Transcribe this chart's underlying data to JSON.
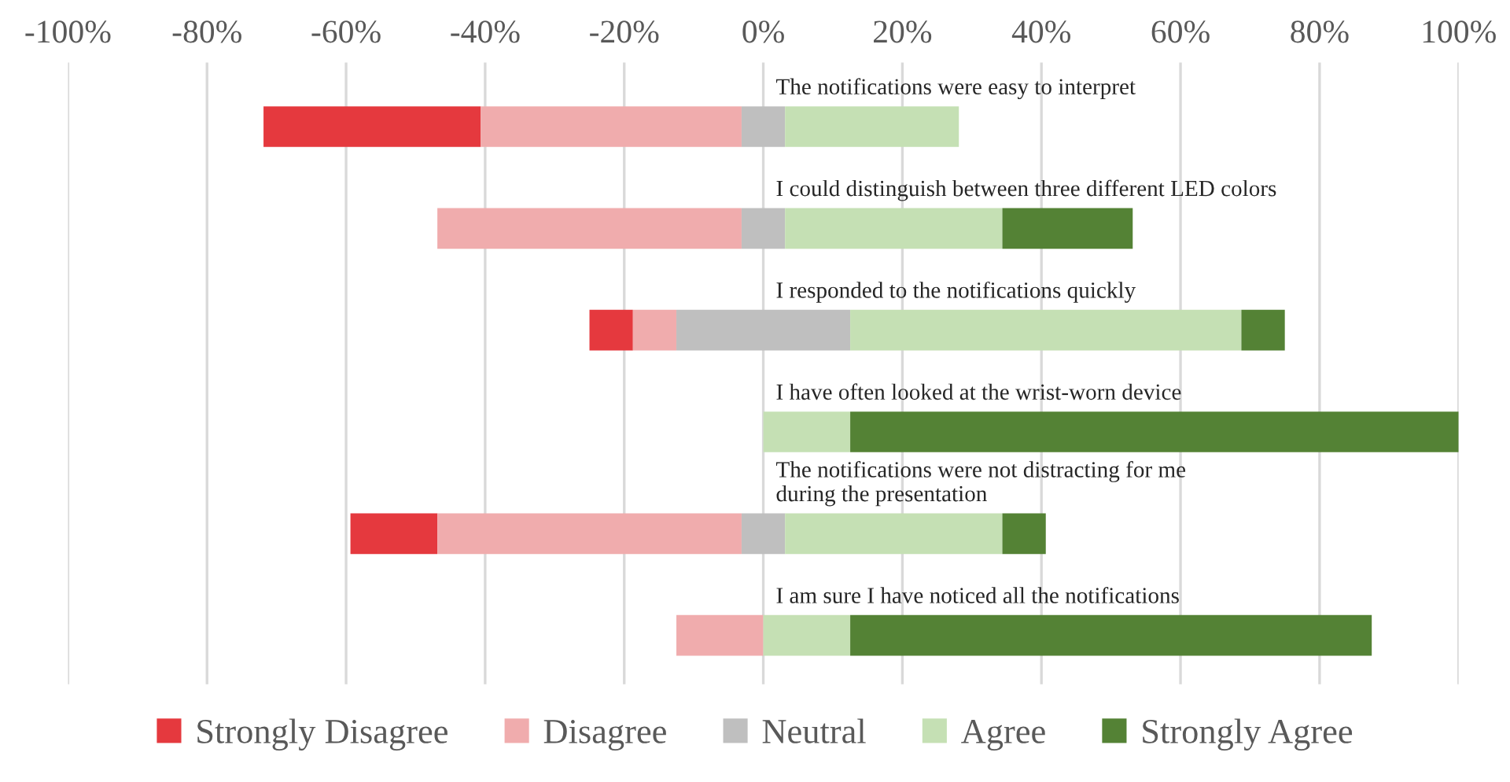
{
  "chart_data": {
    "type": "bar",
    "orientation": "horizontal",
    "categories": [
      "The notifications were easy to interpret",
      "I could distinguish between three different LED colors",
      "I responded to the notifications quickly",
      "I have often looked at the wrist-worn device",
      "The notifications were not distracting for me\nduring the presentation",
      "I am sure I have noticed all the notifications"
    ],
    "series": [
      {
        "name": "Strongly Disagree",
        "color": "#e5393e",
        "values": [
          31.25,
          null,
          6.25,
          null,
          12.5,
          null
        ],
        "base": [
          -71.875,
          null,
          -25,
          null,
          -59.375,
          null
        ]
      },
      {
        "name": "Disagree",
        "color": "#f0acad",
        "values": [
          37.5,
          43.75,
          6.25,
          null,
          43.75,
          12.5
        ],
        "base": [
          -40.625,
          -46.875,
          -18.75,
          null,
          -46.875,
          -12.5
        ]
      },
      {
        "name": "Neutral",
        "color": "#bfbfbf",
        "values": [
          6.25,
          6.25,
          25,
          null,
          6.25,
          null
        ],
        "base": [
          -3.125,
          -3.125,
          -12.5,
          null,
          -3.125,
          null
        ]
      },
      {
        "name": "Agree",
        "color": "#c5e0b4",
        "values": [
          25,
          31.25,
          56.25,
          12.5,
          31.25,
          12.5
        ],
        "base": [
          3.125,
          3.125,
          12.5,
          0,
          3.125,
          0
        ]
      },
      {
        "name": "Strongly Agree",
        "color": "#548235",
        "values": [
          null,
          18.75,
          6.25,
          87.5,
          6.25,
          75
        ],
        "base": [
          null,
          34.375,
          68.75,
          12.5,
          34.375,
          12.5
        ]
      }
    ],
    "xlim": [
      -100,
      100
    ],
    "xticks": [
      {
        "value": -100,
        "label": "-100%"
      },
      {
        "value": -80,
        "label": "-80%"
      },
      {
        "value": -60,
        "label": "-60%"
      },
      {
        "value": -40,
        "label": "-40%"
      },
      {
        "value": -20,
        "label": "-20%"
      },
      {
        "value": 0,
        "label": "0%"
      },
      {
        "value": 20,
        "label": "20%"
      },
      {
        "value": 40,
        "label": "40%"
      },
      {
        "value": 60,
        "label": "60%"
      },
      {
        "value": 80,
        "label": "80%"
      },
      {
        "value": 100,
        "label": "100%"
      }
    ],
    "grid": "x",
    "legend": "bottom"
  }
}
